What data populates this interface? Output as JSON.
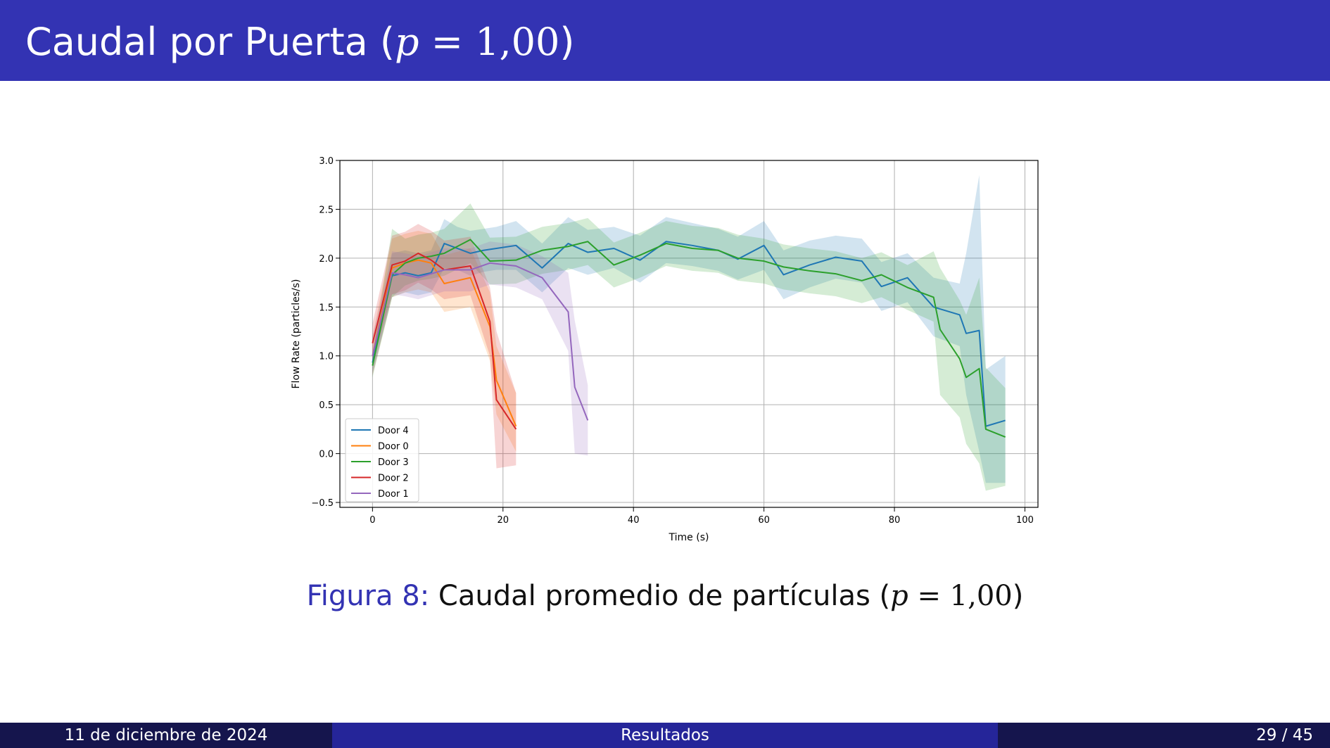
{
  "slide": {
    "title_text": "Caudal por Puerta (",
    "title_var": "p",
    "title_eq": " = 1,00",
    "title_close": ")",
    "caption_label": "Figura 8:",
    "caption_text": " Caudal promedio de partículas (",
    "caption_var": "p",
    "caption_eq": " = 1,00",
    "caption_close": ")"
  },
  "footer": {
    "date": "11 de diciembre de 2024",
    "section": "Resultados",
    "page": "29 / 45"
  },
  "colors": {
    "header_bar": "#3333b3",
    "footer_dark": "#15154d",
    "footer_mid": "#252599",
    "caption_label": "#3333b3"
  },
  "chart_data": {
    "type": "line",
    "title": "",
    "xlabel": "Time (s)",
    "ylabel": "Flow Rate (particles/s)",
    "xlim": [
      -5,
      102
    ],
    "ylim": [
      -0.55,
      3.0
    ],
    "xticks": [
      0,
      20,
      40,
      60,
      80,
      100
    ],
    "yticks": [
      -0.5,
      0.0,
      0.5,
      1.0,
      1.5,
      2.0,
      2.5,
      3.0
    ],
    "ytick_labels": [
      "−0.5",
      "0.0",
      "0.5",
      "1.0",
      "1.5",
      "2.0",
      "2.5",
      "3.0"
    ],
    "grid": true,
    "legend_position": "lower-left",
    "shaded_band": "mean ± spread",
    "series": [
      {
        "name": "Door 4",
        "color": "#1f77b4",
        "x": [
          0,
          3,
          5,
          7,
          9,
          11,
          13,
          15,
          17,
          19,
          22,
          26,
          30,
          33,
          37,
          41,
          45,
          49,
          53,
          56,
          60,
          63,
          67,
          71,
          75,
          78,
          82,
          86,
          90,
          91,
          93,
          94,
          97
        ],
        "y": [
          0.93,
          1.82,
          1.85,
          1.82,
          1.85,
          2.15,
          2.1,
          2.05,
          2.08,
          2.1,
          2.13,
          1.9,
          2.15,
          2.06,
          2.1,
          1.98,
          2.17,
          2.13,
          2.08,
          1.99,
          2.13,
          1.83,
          1.93,
          2.01,
          1.97,
          1.71,
          1.8,
          1.5,
          1.42,
          1.23,
          1.26,
          0.28,
          0.34
        ],
        "lower": [
          0.83,
          1.6,
          1.65,
          1.62,
          1.65,
          1.9,
          1.88,
          1.82,
          1.86,
          1.88,
          1.88,
          1.65,
          1.9,
          1.83,
          1.9,
          1.75,
          1.95,
          1.92,
          1.87,
          1.78,
          1.88,
          1.58,
          1.7,
          1.79,
          1.75,
          1.46,
          1.55,
          1.2,
          1.1,
          0.6,
          0.02,
          -0.3,
          -0.3
        ],
        "upper": [
          1.03,
          2.05,
          2.08,
          2.05,
          2.08,
          2.4,
          2.32,
          2.28,
          2.3,
          2.32,
          2.38,
          2.15,
          2.42,
          2.29,
          2.32,
          2.23,
          2.42,
          2.36,
          2.3,
          2.22,
          2.38,
          2.08,
          2.18,
          2.23,
          2.2,
          1.96,
          2.05,
          1.8,
          1.74,
          2.05,
          2.85,
          0.86,
          1.0
        ]
      },
      {
        "name": "Door 0",
        "color": "#ff7f0e",
        "x": [
          0,
          3,
          5,
          7,
          9,
          11,
          15,
          18,
          19,
          22
        ],
        "y": [
          1.0,
          1.9,
          1.95,
          1.98,
          1.95,
          1.74,
          1.8,
          1.3,
          0.75,
          0.28
        ],
        "lower": [
          0.8,
          1.6,
          1.65,
          1.68,
          1.65,
          1.45,
          1.5,
          0.95,
          0.4,
          0.02
        ],
        "upper": [
          1.2,
          2.2,
          2.25,
          2.28,
          2.25,
          2.03,
          2.1,
          1.65,
          1.1,
          0.62
        ]
      },
      {
        "name": "Door 3",
        "color": "#2ca02c",
        "x": [
          0,
          3,
          5,
          7,
          9,
          11,
          15,
          18,
          22,
          26,
          30,
          33,
          37,
          41,
          45,
          49,
          53,
          56,
          60,
          63,
          67,
          71,
          75,
          78,
          82,
          86,
          87,
          90,
          91,
          93,
          94,
          97
        ],
        "y": [
          0.9,
          1.83,
          1.95,
          2.0,
          2.02,
          2.05,
          2.19,
          1.97,
          1.98,
          2.08,
          2.12,
          2.17,
          1.93,
          2.03,
          2.15,
          2.1,
          2.08,
          2.0,
          1.97,
          1.91,
          1.87,
          1.84,
          1.77,
          1.83,
          1.7,
          1.6,
          1.27,
          0.97,
          0.78,
          0.87,
          0.25,
          0.17
        ],
        "lower": [
          0.78,
          1.6,
          1.72,
          1.77,
          1.79,
          1.82,
          1.95,
          1.73,
          1.74,
          1.84,
          1.88,
          1.93,
          1.7,
          1.8,
          1.92,
          1.87,
          1.85,
          1.77,
          1.74,
          1.68,
          1.64,
          1.61,
          1.54,
          1.6,
          1.47,
          1.35,
          0.6,
          0.37,
          0.1,
          -0.1,
          -0.38,
          -0.33
        ],
        "upper": [
          1.02,
          2.3,
          2.2,
          2.24,
          2.26,
          2.3,
          2.56,
          2.21,
          2.22,
          2.32,
          2.36,
          2.41,
          2.16,
          2.26,
          2.38,
          2.33,
          2.31,
          2.24,
          2.2,
          2.14,
          2.1,
          2.07,
          2.0,
          2.06,
          1.93,
          2.07,
          1.9,
          1.57,
          1.42,
          1.8,
          0.88,
          0.67
        ]
      },
      {
        "name": "Door 2",
        "color": "#d62728",
        "x": [
          0,
          3,
          5,
          7,
          9,
          11,
          15,
          18,
          19,
          22
        ],
        "y": [
          1.13,
          1.93,
          1.97,
          2.05,
          1.98,
          1.88,
          1.92,
          1.35,
          0.55,
          0.25
        ],
        "lower": [
          0.93,
          1.63,
          1.67,
          1.75,
          1.68,
          1.58,
          1.62,
          1.0,
          -0.15,
          -0.12
        ],
        "upper": [
          1.33,
          2.23,
          2.27,
          2.35,
          2.28,
          2.18,
          2.22,
          1.7,
          1.25,
          0.62
        ]
      },
      {
        "name": "Door 1",
        "color": "#9467bd",
        "x": [
          0,
          3,
          5,
          7,
          9,
          11,
          15,
          18,
          22,
          26,
          30,
          31,
          33
        ],
        "y": [
          1.0,
          1.85,
          1.83,
          1.8,
          1.84,
          1.88,
          1.88,
          1.95,
          1.92,
          1.8,
          1.45,
          0.68,
          0.34
        ],
        "lower": [
          0.8,
          1.63,
          1.61,
          1.58,
          1.62,
          1.66,
          1.66,
          1.73,
          1.7,
          1.58,
          1.05,
          0.0,
          -0.02
        ],
        "upper": [
          1.2,
          2.07,
          2.05,
          2.02,
          2.06,
          2.1,
          2.1,
          2.17,
          2.14,
          2.02,
          1.85,
          1.36,
          0.7
        ]
      }
    ]
  }
}
